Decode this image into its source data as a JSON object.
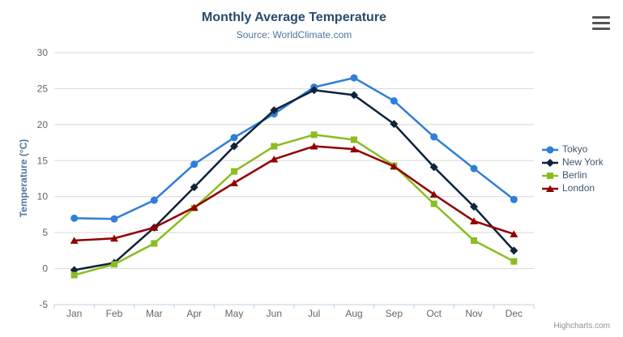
{
  "chart": {
    "title": "Monthly Average Temperature",
    "subtitle": "Source: WorldClimate.com",
    "credit": "Highcharts.com",
    "export_icon": "hamburger-menu-icon"
  },
  "chart_data": {
    "type": "line",
    "title": "Monthly Average Temperature",
    "subtitle": "Source: WorldClimate.com",
    "xlabel": "",
    "ylabel": "Temperature (°C)",
    "ylim": [
      -5,
      30
    ],
    "y_ticks": [
      -5,
      0,
      5,
      10,
      15,
      20,
      25,
      30
    ],
    "grid": true,
    "legend_position": "right",
    "categories": [
      "Jan",
      "Feb",
      "Mar",
      "Apr",
      "May",
      "Jun",
      "Jul",
      "Aug",
      "Sep",
      "Oct",
      "Nov",
      "Dec"
    ],
    "series": [
      {
        "name": "Tokyo",
        "color": "#2f7ed8",
        "marker": "circle",
        "values": [
          7.0,
          6.9,
          9.5,
          14.5,
          18.2,
          21.5,
          25.2,
          26.5,
          23.3,
          18.3,
          13.9,
          9.6
        ]
      },
      {
        "name": "New York",
        "color": "#0d233a",
        "marker": "diamond",
        "values": [
          -0.2,
          0.8,
          5.7,
          11.3,
          17.0,
          22.0,
          24.8,
          24.1,
          20.1,
          14.1,
          8.6,
          2.5
        ]
      },
      {
        "name": "Berlin",
        "color": "#8bbc21",
        "marker": "square",
        "values": [
          -0.9,
          0.6,
          3.5,
          8.4,
          13.5,
          17.0,
          18.6,
          17.9,
          14.3,
          9.0,
          3.9,
          1.0
        ]
      },
      {
        "name": "London",
        "color": "#910000",
        "marker": "triangle",
        "values": [
          3.9,
          4.2,
          5.7,
          8.5,
          11.9,
          15.2,
          17.0,
          16.6,
          14.2,
          10.3,
          6.6,
          4.8
        ]
      }
    ],
    "style": {
      "grid_color": "#D8D8D8",
      "axis_line_color": "#C0D0E0",
      "axis_label_color": "#666666",
      "title_color": "#274b6d",
      "subtitle_color": "#4d759e",
      "legend_text_color": "#3E576F",
      "credit_color": "#909090"
    }
  }
}
